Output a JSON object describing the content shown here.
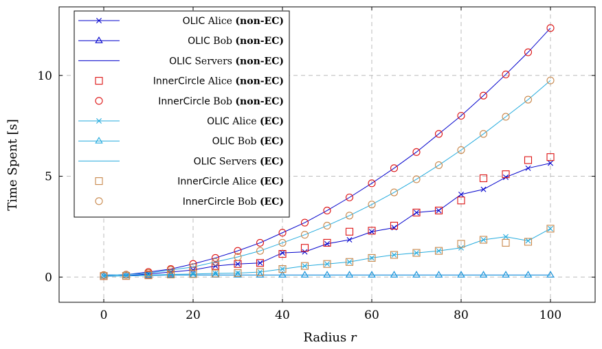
{
  "chart_data": {
    "type": "line",
    "xlabel_prefix": "Radius",
    "xlabel_var": "r",
    "ylabel": "Time Spent [s]",
    "xlim": [
      -10,
      110
    ],
    "ylim": [
      -1.25,
      13.4
    ],
    "x_ticks": [
      0,
      20,
      40,
      60,
      80,
      100
    ],
    "y_ticks": [
      0,
      5,
      10
    ],
    "grid": true,
    "legend_position": "top-left",
    "x": [
      0,
      5,
      10,
      15,
      20,
      25,
      30,
      35,
      40,
      45,
      50,
      55,
      60,
      65,
      70,
      75,
      80,
      85,
      90,
      95,
      100
    ],
    "series": [
      {
        "name": "OLIC Alice (non-EC)",
        "name_sans": "OLIC",
        "name_serif": "Alice",
        "name_bold": "(non-EC)",
        "color": "#0000cc",
        "marker": "x",
        "line": true,
        "values": [
          0.05,
          0.07,
          0.15,
          0.25,
          0.35,
          0.55,
          0.65,
          0.7,
          1.2,
          1.25,
          1.65,
          1.85,
          2.25,
          2.45,
          3.2,
          3.3,
          4.1,
          4.35,
          4.95,
          5.4,
          5.65
        ]
      },
      {
        "name": "OLIC Bob (non-EC)",
        "name_sans": "OLIC",
        "name_serif": "Bob",
        "name_bold": "(non-EC)",
        "color": "#0000cc",
        "marker": "triangle",
        "line": true,
        "values": [
          0.05,
          0.07,
          0.08,
          0.1,
          0.1,
          0.1,
          0.1,
          0.1,
          0.1,
          0.1,
          0.1,
          0.1,
          0.1,
          0.1,
          0.1,
          0.1,
          0.1,
          0.1,
          0.1,
          0.1,
          0.1
        ]
      },
      {
        "name": "OLIC Servers (non-EC)",
        "name_sans": "OLIC",
        "name_serif": "Servers",
        "name_bold": "(non-EC)",
        "color": "#0000cc",
        "marker": "none",
        "line": true,
        "values": [
          0.1,
          0.12,
          0.25,
          0.4,
          0.65,
          0.95,
          1.3,
          1.7,
          2.2,
          2.7,
          3.3,
          3.95,
          4.65,
          5.4,
          6.2,
          7.1,
          8.0,
          9.0,
          10.05,
          11.15,
          12.35
        ]
      },
      {
        "name": "InnerCircle Alice (non-EC)",
        "name_sans": "InnerCircle",
        "name_serif": "Alice",
        "name_bold": "(non-EC)",
        "color": "#dd1111",
        "marker": "square",
        "line": false,
        "values": [
          0.05,
          0.06,
          0.12,
          0.22,
          0.32,
          0.55,
          0.65,
          0.7,
          1.15,
          1.45,
          1.7,
          2.25,
          2.3,
          2.55,
          3.2,
          3.3,
          3.8,
          4.9,
          5.1,
          5.8,
          5.95
        ]
      },
      {
        "name": "InnerCircle Bob (non-EC)",
        "name_sans": "InnerCircle",
        "name_serif": "Bob",
        "name_bold": "(non-EC)",
        "color": "#dd1111",
        "marker": "circle",
        "line": false,
        "values": [
          0.1,
          0.12,
          0.25,
          0.4,
          0.65,
          0.95,
          1.3,
          1.7,
          2.2,
          2.7,
          3.3,
          3.95,
          4.65,
          5.4,
          6.2,
          7.1,
          8.0,
          9.0,
          10.05,
          11.15,
          12.35
        ]
      },
      {
        "name": "OLIC Alice (EC)",
        "name_sans": "OLIC",
        "name_serif": "Alice",
        "name_bold": "(EC)",
        "color": "#22aadd",
        "marker": "x",
        "line": true,
        "values": [
          0.05,
          0.06,
          0.1,
          0.13,
          0.15,
          0.18,
          0.2,
          0.25,
          0.4,
          0.55,
          0.65,
          0.75,
          0.95,
          1.1,
          1.2,
          1.3,
          1.45,
          1.85,
          2.0,
          1.8,
          2.4
        ]
      },
      {
        "name": "OLIC Bob (EC)",
        "name_sans": "OLIC",
        "name_serif": "Bob",
        "name_bold": "(EC)",
        "color": "#22aadd",
        "marker": "triangle",
        "line": true,
        "values": [
          0.05,
          0.06,
          0.08,
          0.1,
          0.1,
          0.1,
          0.1,
          0.1,
          0.1,
          0.1,
          0.1,
          0.1,
          0.1,
          0.1,
          0.1,
          0.1,
          0.1,
          0.1,
          0.1,
          0.1,
          0.1
        ]
      },
      {
        "name": "OLIC Servers (EC)",
        "name_sans": "OLIC",
        "name_serif": "Servers",
        "name_bold": "(EC)",
        "color": "#22aadd",
        "marker": "none",
        "line": true,
        "values": [
          0.1,
          0.12,
          0.2,
          0.35,
          0.5,
          0.75,
          1.0,
          1.3,
          1.7,
          2.1,
          2.55,
          3.05,
          3.6,
          4.2,
          4.85,
          5.55,
          6.3,
          7.1,
          7.95,
          8.8,
          9.75
        ]
      },
      {
        "name": "InnerCircle Alice (EC)",
        "name_sans": "InnerCircle",
        "name_serif": "Alice",
        "name_bold": "(EC)",
        "color": "#c8874a",
        "marker": "square",
        "line": false,
        "values": [
          0.05,
          0.06,
          0.09,
          0.13,
          0.15,
          0.18,
          0.2,
          0.25,
          0.4,
          0.55,
          0.65,
          0.75,
          0.95,
          1.1,
          1.2,
          1.3,
          1.65,
          1.85,
          1.7,
          1.75,
          2.4
        ]
      },
      {
        "name": "InnerCircle Bob (EC)",
        "name_sans": "InnerCircle",
        "name_serif": "Bob",
        "name_bold": "(EC)",
        "color": "#c8874a",
        "marker": "circle",
        "line": false,
        "values": [
          0.1,
          0.12,
          0.2,
          0.35,
          0.5,
          0.75,
          1.0,
          1.3,
          1.7,
          2.1,
          2.55,
          3.05,
          3.6,
          4.2,
          4.85,
          5.55,
          6.3,
          7.1,
          7.95,
          8.8,
          9.75
        ]
      }
    ]
  }
}
